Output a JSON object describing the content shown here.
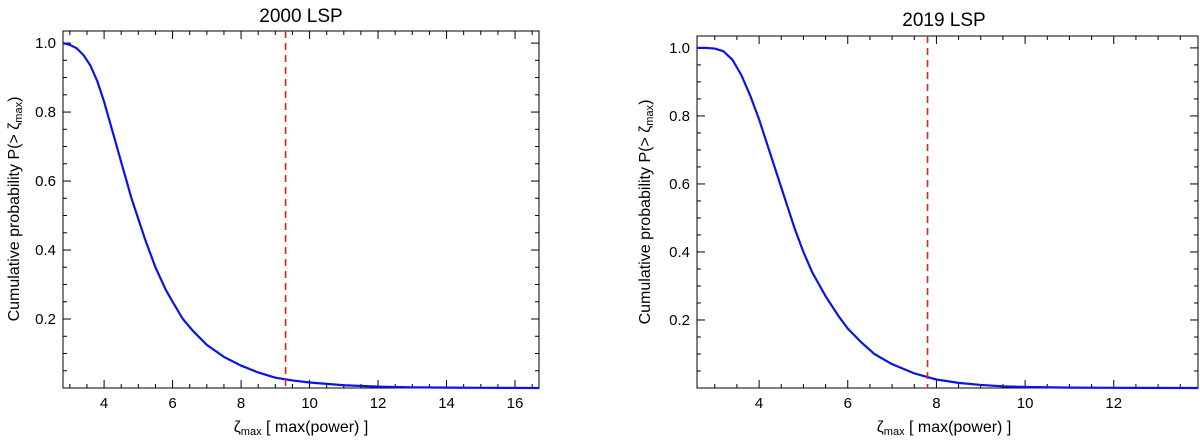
{
  "chart_data": [
    {
      "type": "line",
      "title": "2000 LSP",
      "ylabel": "Cumulative probability P(> ζ",
      "ylabel_sub": "max",
      "ylabel_close": ")",
      "xlabel_symbol": "ζ",
      "xlabel_sub": "max",
      "xlabel_rest": " [ max(power) ]",
      "xlim": [
        2.8,
        16.7
      ],
      "ylim": [
        0.0,
        1.035
      ],
      "xticks": [
        4,
        6,
        8,
        10,
        12,
        14,
        16
      ],
      "xtick_labels": [
        "4",
        "6",
        "8",
        "10",
        "12",
        "14",
        "16"
      ],
      "yticks": [
        0.2,
        0.4,
        0.6,
        0.8,
        1.0
      ],
      "ytick_labels": [
        "0.2",
        "0.4",
        "0.6",
        "0.8",
        "1.0"
      ],
      "series": [
        {
          "color": "#0a14e6",
          "x": [
            2.8,
            3.0,
            3.2,
            3.4,
            3.6,
            3.8,
            4.0,
            4.2,
            4.4,
            4.6,
            4.8,
            5.0,
            5.2,
            5.5,
            5.8,
            6.0,
            6.3,
            6.6,
            7.0,
            7.5,
            8.0,
            8.5,
            9.0,
            9.5,
            10.0,
            10.5,
            11.0,
            12.0,
            13.0,
            14.0,
            15.0,
            16.7
          ],
          "y": [
            1.0,
            0.995,
            0.985,
            0.965,
            0.935,
            0.89,
            0.83,
            0.76,
            0.69,
            0.62,
            0.55,
            0.49,
            0.43,
            0.35,
            0.285,
            0.25,
            0.2,
            0.165,
            0.125,
            0.09,
            0.065,
            0.045,
            0.03,
            0.022,
            0.016,
            0.012,
            0.008,
            0.004,
            0.002,
            0.001,
            0.0005,
            0.0
          ]
        }
      ],
      "threshold_x": 9.3,
      "threshold_color": "#e8221b"
    },
    {
      "type": "line",
      "title": "2019 LSP",
      "ylabel": "Cumulative probability P(> ζ",
      "ylabel_sub": "max",
      "ylabel_close": ")",
      "xlabel_symbol": "ζ",
      "xlabel_sub": "max",
      "xlabel_rest": " [ max(power) ]",
      "xlim": [
        2.6,
        13.9
      ],
      "ylim": [
        0.0,
        1.035
      ],
      "xticks": [
        4,
        6,
        8,
        10,
        12
      ],
      "xtick_labels": [
        "4",
        "6",
        "8",
        "10",
        "12"
      ],
      "yticks": [
        0.2,
        0.4,
        0.6,
        0.8,
        1.0
      ],
      "ytick_labels": [
        "0.2",
        "0.4",
        "0.6",
        "0.8",
        "1.0"
      ],
      "series": [
        {
          "color": "#0a14e6",
          "x": [
            2.6,
            2.8,
            3.0,
            3.2,
            3.4,
            3.6,
            3.8,
            4.0,
            4.2,
            4.4,
            4.6,
            4.8,
            5.0,
            5.2,
            5.5,
            5.8,
            6.0,
            6.3,
            6.6,
            7.0,
            7.5,
            8.0,
            8.5,
            9.0,
            9.5,
            10.0,
            11.0,
            12.0,
            13.9
          ],
          "y": [
            1.0,
            1.0,
            0.998,
            0.99,
            0.965,
            0.92,
            0.86,
            0.79,
            0.71,
            0.63,
            0.55,
            0.47,
            0.4,
            0.34,
            0.27,
            0.21,
            0.175,
            0.135,
            0.1,
            0.07,
            0.043,
            0.025,
            0.015,
            0.009,
            0.005,
            0.003,
            0.001,
            0.0005,
            0.0
          ]
        }
      ],
      "threshold_x": 7.8,
      "threshold_color": "#e8221b"
    }
  ]
}
